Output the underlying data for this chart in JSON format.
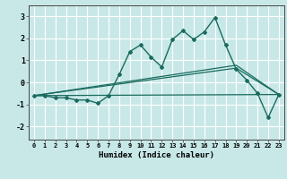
{
  "xlabel": "Humidex (Indice chaleur)",
  "ylabel": "",
  "bg_color": "#c8e8e8",
  "grid_color": "#ffffff",
  "line_color": "#1a6b5e",
  "xlim": [
    -0.5,
    23.5
  ],
  "ylim": [
    -2.6,
    3.5
  ],
  "xticks": [
    0,
    1,
    2,
    3,
    4,
    5,
    6,
    7,
    8,
    9,
    10,
    11,
    12,
    13,
    14,
    15,
    16,
    17,
    18,
    19,
    20,
    21,
    22,
    23
  ],
  "yticks": [
    -2,
    -1,
    0,
    1,
    2,
    3
  ],
  "main_line_x": [
    0,
    1,
    2,
    3,
    4,
    5,
    6,
    7,
    8,
    9,
    10,
    11,
    12,
    13,
    14,
    15,
    16,
    17,
    18,
    19,
    20,
    21,
    22,
    23
  ],
  "main_line_y": [
    -0.6,
    -0.6,
    -0.7,
    -0.7,
    -0.8,
    -0.8,
    -0.95,
    -0.6,
    0.35,
    1.4,
    1.7,
    1.15,
    0.7,
    1.95,
    2.35,
    1.95,
    2.3,
    2.95,
    1.7,
    0.6,
    0.1,
    -0.5,
    -1.6,
    -0.55
  ],
  "line2_x": [
    0,
    23
  ],
  "line2_y": [
    -0.6,
    -0.55
  ],
  "line3_x": [
    0,
    19,
    23
  ],
  "line3_y": [
    -0.6,
    0.65,
    -0.55
  ],
  "line4_x": [
    0,
    19,
    23
  ],
  "line4_y": [
    -0.6,
    0.78,
    -0.55
  ]
}
